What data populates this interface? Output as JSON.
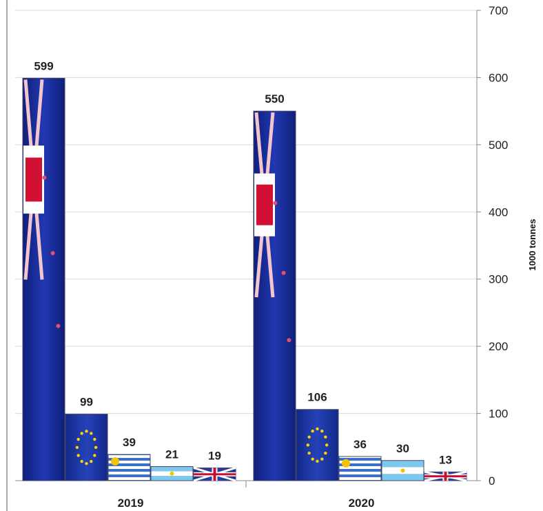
{
  "chart_data": {
    "type": "bar",
    "categories": [
      "2019",
      "2020"
    ],
    "series": [
      {
        "flag": "new-zealand",
        "values": [
          599,
          550
        ]
      },
      {
        "flag": "european-union",
        "values": [
          99,
          106
        ]
      },
      {
        "flag": "uruguay",
        "values": [
          39,
          36
        ]
      },
      {
        "flag": "argentina",
        "values": [
          21,
          30
        ]
      },
      {
        "flag": "united-kingdom",
        "values": [
          19,
          13
        ]
      }
    ],
    "ylabel": "1000 tonnes",
    "ylim": [
      0,
      700
    ],
    "yticks": [
      "0",
      "100",
      "200",
      "300",
      "400",
      "500",
      "600",
      "700"
    ],
    "yaxis_side": "right",
    "grid": true,
    "legend": "none",
    "colors": {
      "new-zealand": "#1a2f9a",
      "european-union": "#1c3aa8",
      "uruguay": "#2e63c4",
      "argentina": "#8fd0ee",
      "united-kingdom": "#c8102e"
    }
  }
}
